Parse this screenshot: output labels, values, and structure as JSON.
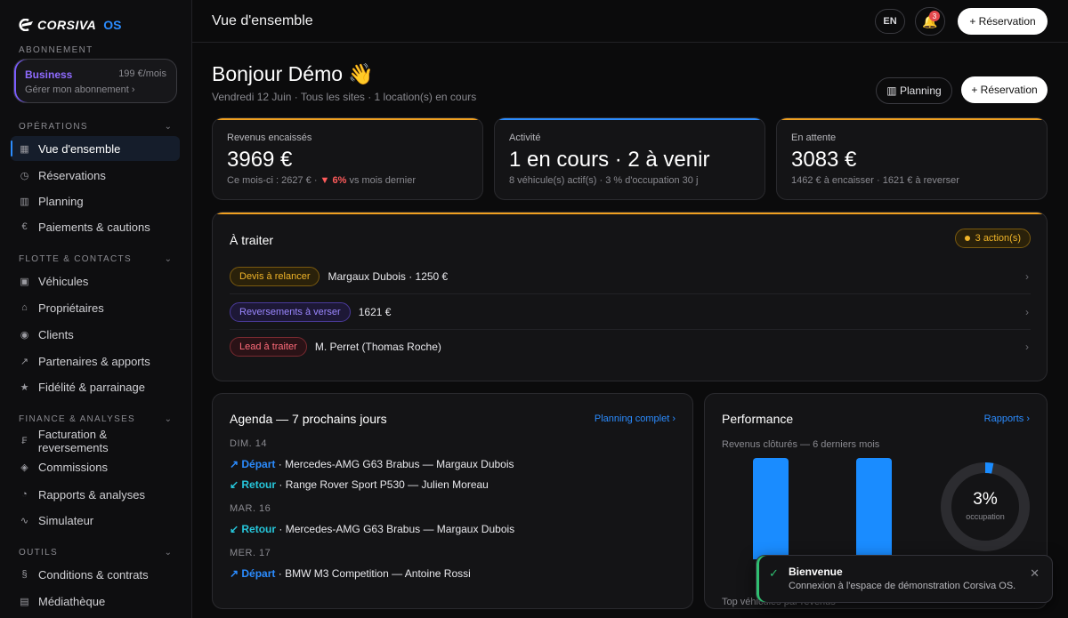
{
  "brand": {
    "name": "CORSIVA",
    "suffix": "OS"
  },
  "sidebar": {
    "subscription_label": "ABONNEMENT",
    "plan": {
      "name": "Business",
      "price": "199 €/mois",
      "manage": "Gérer mon abonnement ›"
    },
    "sections": [
      {
        "label": "OPÉRATIONS",
        "items": [
          {
            "icon": "▦",
            "label": "Vue d'ensemble"
          },
          {
            "icon": "◷",
            "label": "Réservations"
          },
          {
            "icon": "▥",
            "label": "Planning"
          },
          {
            "icon": "€",
            "label": "Paiements & cautions"
          }
        ]
      },
      {
        "label": "FLOTTE & CONTACTS",
        "items": [
          {
            "icon": "▣",
            "label": "Véhicules"
          },
          {
            "icon": "⌂",
            "label": "Propriétaires"
          },
          {
            "icon": "◉",
            "label": "Clients"
          },
          {
            "icon": "↗",
            "label": "Partenaires & apports"
          },
          {
            "icon": "★",
            "label": "Fidélité & parrainage"
          }
        ]
      },
      {
        "label": "FINANCE & ANALYSES",
        "items": [
          {
            "icon": "₣",
            "label": "Facturation & reversements"
          },
          {
            "icon": "◈",
            "label": "Commissions"
          },
          {
            "icon": "◔",
            "label": "Rapports & analyses"
          },
          {
            "icon": "∿",
            "label": "Simulateur"
          }
        ]
      },
      {
        "label": "OUTILS",
        "items": [
          {
            "icon": "§",
            "label": "Conditions & contrats"
          },
          {
            "icon": "▤",
            "label": "Médiathèque"
          }
        ]
      }
    ]
  },
  "topbar": {
    "title": "Vue d'ensemble",
    "lang": "EN",
    "notif_count": "3",
    "reservation_label": "+ Réservation"
  },
  "header": {
    "greeting": "Bonjour Démo 👋",
    "subtitle": "Vendredi 12 Juin · Tous les sites · 1 location(s) en cours",
    "planning_label": "▥ Planning",
    "reservation_label": "+ Réservation"
  },
  "kpis": [
    {
      "label": "Revenus encaissés",
      "value": "3969 €",
      "foot_prefix": "Ce mois-ci : 2627 € · ",
      "delta": "▼ 6%",
      "foot_suffix": " vs mois dernier",
      "accent": "#f0a020"
    },
    {
      "label": "Activité",
      "value": "1 en cours · 2 à venir",
      "foot": "8 véhicule(s) actif(s) · 3 % d'occupation 30 j",
      "accent": "#2b8cff"
    },
    {
      "label": "En attente",
      "value": "3083 €",
      "foot": "1462 € à encaisser · 1621 € à reverser",
      "accent": "#f0a020"
    }
  ],
  "todo": {
    "title": "À traiter",
    "badge": "3 action(s)",
    "rows": [
      {
        "tag": "Devis à relancer",
        "text": "Margaux Dubois · 1250 €"
      },
      {
        "tag": "Reversements à verser",
        "text": "1621 €"
      },
      {
        "tag": "Lead à traiter",
        "text": "M. Perret (Thomas Roche)"
      }
    ]
  },
  "agenda": {
    "title": "Agenda — 7 prochains jours",
    "link": "Planning complet ›",
    "days": [
      {
        "day": "DIM. 14",
        "events": [
          {
            "type": "↗ Départ",
            "detail": " · Mercedes-AMG G63 Brabus — Margaux Dubois"
          },
          {
            "type": "↙ Retour",
            "detail": " · Range Rover Sport P530 — Julien Moreau"
          }
        ]
      },
      {
        "day": "MAR. 16",
        "events": [
          {
            "type": "↙ Retour",
            "detail": " · Mercedes-AMG G63 Brabus — Margaux Dubois"
          }
        ]
      },
      {
        "day": "MER. 17",
        "events": [
          {
            "type": "↗ Départ",
            "detail": " · BMW M3 Competition — Antoine Rossi"
          }
        ]
      }
    ]
  },
  "performance": {
    "title": "Performance",
    "link": "Rapports ›",
    "subtitle": "Revenus clôturés — 6 derniers mois",
    "occupation_value": "3%",
    "occupation_fraction": 0.03,
    "occupation_label": "occupation",
    "bottom_label": "Top véhicules par revenus",
    "bar_color": "#1a8cff"
  },
  "toast": {
    "title": "Bienvenue",
    "message": "Connexion à l'espace de démonstration Corsiva OS."
  }
}
